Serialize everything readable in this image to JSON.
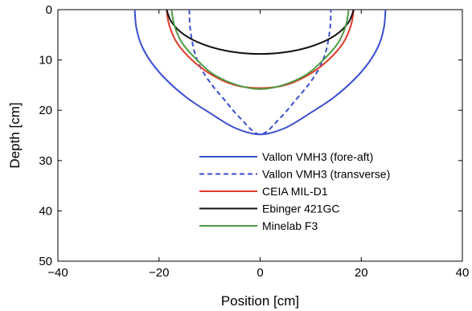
{
  "chart_data": {
    "type": "line",
    "title": "",
    "xlabel": "Position [cm]",
    "ylabel": "Depth [cm]",
    "xlim": [
      -40,
      40
    ],
    "ylim": [
      0,
      50
    ],
    "y_inverted": true,
    "grid": false,
    "legend_position": "bottom-right",
    "xticks": [
      -40,
      -20,
      0,
      20,
      40
    ],
    "yticks": [
      0,
      10,
      20,
      30,
      40,
      50
    ],
    "series": [
      {
        "name": "Vallon VMH3 (fore-aft)",
        "color": "#3a4fd0",
        "dash": "solid",
        "x": [
          -24.8,
          -24.5,
          -23.5,
          -21.5,
          -18.5,
          -14.5,
          -10,
          -5,
          0,
          5,
          10,
          14.5,
          18.5,
          21.5,
          23.5,
          24.5,
          24.8
        ],
        "y": [
          0,
          3.5,
          7,
          10.5,
          14,
          17.5,
          20.5,
          23.5,
          24.8,
          23.5,
          20.5,
          17.5,
          14,
          10.5,
          7,
          3.5,
          0
        ]
      },
      {
        "name": "Vallon VMH3 (transverse)",
        "color": "#3a4fd0",
        "dash": "dashed",
        "x": [
          -14,
          -13.9,
          -13.5,
          -12.8,
          -11.5,
          -9.5,
          -7,
          -4,
          0,
          4,
          7,
          9.5,
          11.5,
          12.8,
          13.5,
          13.9,
          14
        ],
        "y": [
          0,
          3,
          6,
          9,
          12,
          15,
          18,
          21.5,
          24.8,
          21.5,
          18,
          15,
          12,
          9,
          6,
          3,
          0
        ]
      },
      {
        "name": "CEIA MIL-D1",
        "color": "#e03a2a",
        "dash": "solid",
        "x": [
          -18.5,
          -18,
          -16.5,
          -13.5,
          -9.5,
          -5,
          0,
          5,
          9.5,
          13.5,
          16.5,
          18,
          18.5
        ],
        "y": [
          0,
          3,
          6.5,
          10,
          13,
          15,
          15.6,
          15,
          13,
          10,
          6.5,
          3,
          0
        ]
      },
      {
        "name": "Ebinger 421GC",
        "color": "#111111",
        "dash": "solid",
        "x": [
          -18.5,
          -17.5,
          -15,
          -11,
          -6,
          0,
          6,
          11,
          15,
          17.5,
          18.5
        ],
        "y": [
          0,
          2.5,
          5,
          7,
          8.3,
          8.8,
          8.3,
          7,
          5,
          2.5,
          0
        ]
      },
      {
        "name": "Minelab F3",
        "color": "#4f9a45",
        "dash": "solid",
        "x": [
          -17.5,
          -17,
          -15.5,
          -12.5,
          -9,
          -4.5,
          0,
          4.5,
          9,
          12.5,
          15.5,
          17,
          17.5
        ],
        "y": [
          0,
          3,
          6.5,
          10,
          13,
          15,
          15.8,
          15,
          13,
          10,
          6.5,
          3,
          0
        ]
      }
    ]
  }
}
